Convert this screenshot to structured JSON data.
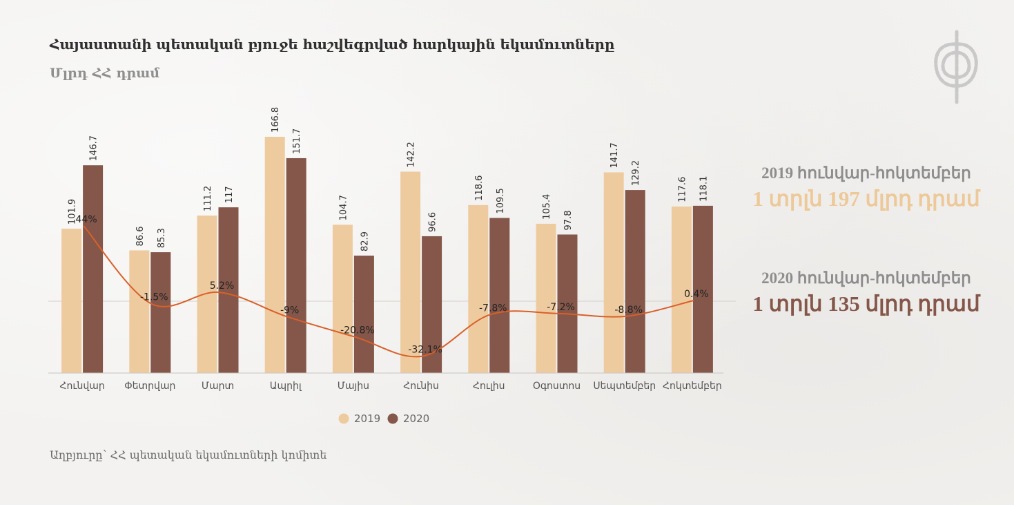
{
  "header": {
    "title": "Հայաստանի պետական բյուջե հաշվեգրված հարկային եկամուտները",
    "subtitle": "Մլրդ ՀՀ դրամ"
  },
  "footer": {
    "source": "Աղբյուրը՝ ՀՀ պետական եկամուտների կոմիտե"
  },
  "summary": [
    {
      "label": "2019 հունվար-հոկտեմբեր",
      "value": "1 տրլն 197 մլրդ դրամ",
      "color": "#edc898"
    },
    {
      "label": "2020 հունվար-հոկտեմբեր",
      "value": "1 տրլն 135 մլրդ դրամ",
      "color": "#85574a"
    }
  ],
  "logo": {
    "icon": "emblem-icon",
    "color": "#c9c9c9"
  },
  "chart_data": {
    "type": "bar",
    "categories": [
      "Հունվար",
      "Փետրվար",
      "Մարտ",
      "Ապրիլ",
      "Մայիս",
      "Հունիս",
      "Հուլիս",
      "Օգոստոս",
      "Սեպտեմբեր",
      "Հոկտեմբեր"
    ],
    "series": [
      {
        "name": "2019",
        "color": "#eecb9f",
        "values": [
          101.9,
          86.6,
          111.2,
          166.8,
          104.7,
          142.2,
          118.6,
          105.4,
          141.7,
          117.6
        ],
        "labels": [
          "101.9",
          "86.6",
          "111.2",
          "166.8",
          "104.7",
          "142.2",
          "118.6",
          "105.4",
          "141.7",
          "117.6"
        ]
      },
      {
        "name": "2020",
        "color": "#84574a",
        "values": [
          146.7,
          85.3,
          117,
          151.7,
          82.9,
          96.6,
          109.5,
          97.8,
          129.2,
          118.1
        ],
        "labels": [
          "146.7",
          "85.3",
          "117",
          "151.7",
          "82.9",
          "96.6",
          "109.5",
          "97.8",
          "129.2",
          "118.1"
        ]
      }
    ],
    "change_line": {
      "color": "#d9602a",
      "values": [
        44,
        -1.5,
        5.2,
        -9,
        -20.8,
        -32.1,
        -7.8,
        -7.2,
        -8.8,
        0.4
      ],
      "labels": [
        "44%",
        "-1.5%",
        "5.2%",
        "-9%",
        "-20.8%",
        "-32.1%",
        "-7.8%",
        "-7.2%",
        "-8.8%",
        "0.4%"
      ]
    },
    "legend": {
      "position": "bottom",
      "items": [
        "2019",
        "2020"
      ]
    },
    "ylim": [
      0,
      175
    ]
  }
}
